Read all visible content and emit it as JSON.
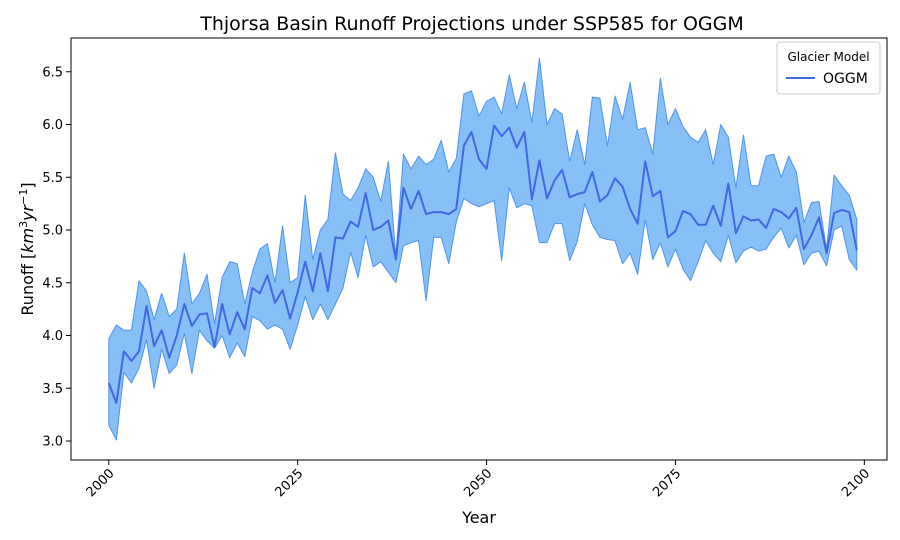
{
  "chart_data": {
    "type": "area",
    "title": "Thjorsa Basin Runoff Projections under SSP585 for OGGM",
    "xlabel": "Year",
    "ylabel_main": "Runoff [",
    "ylabel_km": "km",
    "ylabel_km_exp": "3",
    "ylabel_yr": "yr",
    "ylabel_yr_exp": "−1",
    "ylabel_close": "]",
    "xlim": [
      1995,
      2103
    ],
    "ylim": [
      2.82,
      6.82
    ],
    "x_ticks": [
      2000,
      2025,
      2050,
      2075,
      2100
    ],
    "x_tick_labels": [
      "2000",
      "2025",
      "2050",
      "2075",
      "2100"
    ],
    "y_ticks": [
      3.0,
      3.5,
      4.0,
      4.5,
      5.0,
      5.5,
      6.0,
      6.5
    ],
    "y_tick_labels": [
      "3.0",
      "3.5",
      "4.0",
      "4.5",
      "5.0",
      "5.5",
      "6.0",
      "6.5"
    ],
    "grid": false,
    "legend": {
      "title": "Glacier Model",
      "placement": "top-right",
      "entries": [
        "OGGM"
      ]
    },
    "colors": {
      "line": "#4169e1",
      "band_fill": "#87bff7",
      "band_edge": "#4f94ef"
    },
    "x": [
      2000,
      2001,
      2002,
      2003,
      2004,
      2005,
      2006,
      2007,
      2008,
      2009,
      2010,
      2011,
      2012,
      2013,
      2014,
      2015,
      2016,
      2017,
      2018,
      2019,
      2020,
      2021,
      2022,
      2023,
      2024,
      2025,
      2026,
      2027,
      2028,
      2029,
      2030,
      2031,
      2032,
      2033,
      2034,
      2035,
      2036,
      2037,
      2038,
      2039,
      2040,
      2041,
      2042,
      2043,
      2044,
      2045,
      2046,
      2047,
      2048,
      2049,
      2050,
      2051,
      2052,
      2053,
      2054,
      2055,
      2056,
      2057,
      2058,
      2059,
      2060,
      2061,
      2062,
      2063,
      2064,
      2065,
      2066,
      2067,
      2068,
      2069,
      2070,
      2071,
      2072,
      2073,
      2074,
      2075,
      2076,
      2077,
      2078,
      2079,
      2080,
      2081,
      2082,
      2083,
      2084,
      2085,
      2086,
      2087,
      2088,
      2089,
      2090,
      2091,
      2092,
      2093,
      2094,
      2095,
      2096,
      2097,
      2098,
      2099
    ],
    "series": [
      {
        "name": "OGGM",
        "values": [
          3.55,
          3.36,
          3.85,
          3.76,
          3.85,
          4.28,
          3.9,
          4.05,
          3.79,
          4.0,
          4.3,
          4.09,
          4.2,
          4.21,
          3.89,
          4.3,
          4.01,
          4.22,
          4.06,
          4.45,
          4.4,
          4.57,
          4.31,
          4.43,
          4.16,
          4.41,
          4.7,
          4.42,
          4.78,
          4.42,
          4.93,
          4.92,
          5.08,
          5.03,
          5.35,
          5.0,
          5.03,
          5.09,
          4.72,
          5.4,
          5.2,
          5.37,
          5.15,
          5.17,
          5.17,
          5.15,
          5.2,
          5.8,
          5.93,
          5.67,
          5.58,
          5.99,
          5.89,
          5.97,
          5.78,
          5.93,
          5.29,
          5.66,
          5.3,
          5.47,
          5.57,
          5.31,
          5.34,
          5.36,
          5.55,
          5.27,
          5.33,
          5.49,
          5.41,
          5.2,
          5.06,
          5.65,
          5.32,
          5.37,
          4.93,
          4.99,
          5.18,
          5.15,
          5.05,
          5.05,
          5.23,
          5.04,
          5.44,
          4.97,
          5.13,
          5.09,
          5.1,
          5.02,
          5.2,
          5.17,
          5.11,
          5.21,
          4.82,
          4.95,
          5.12,
          4.78,
          5.16,
          5.19,
          5.17,
          4.81
        ],
        "lower": [
          3.15,
          3.01,
          3.65,
          3.55,
          3.69,
          3.96,
          3.5,
          3.87,
          3.64,
          3.72,
          4.02,
          3.64,
          4.05,
          3.95,
          3.88,
          4.0,
          3.79,
          3.93,
          3.8,
          4.18,
          4.14,
          4.06,
          4.1,
          4.06,
          3.87,
          4.1,
          4.37,
          4.15,
          4.3,
          4.15,
          4.3,
          4.45,
          4.79,
          4.55,
          4.95,
          4.65,
          4.7,
          4.6,
          4.5,
          4.85,
          4.88,
          4.9,
          4.33,
          4.93,
          4.93,
          4.68,
          5.08,
          5.3,
          5.25,
          5.22,
          5.25,
          5.28,
          4.71,
          5.4,
          5.21,
          5.25,
          5.23,
          4.88,
          4.88,
          5.06,
          5.06,
          4.71,
          4.89,
          5.25,
          5.05,
          4.93,
          4.91,
          4.9,
          4.68,
          4.78,
          4.58,
          5.1,
          4.72,
          4.88,
          4.65,
          4.82,
          4.63,
          4.52,
          4.7,
          4.9,
          4.78,
          4.7,
          4.95,
          4.69,
          4.8,
          4.84,
          4.8,
          4.82,
          4.93,
          5.02,
          4.83,
          4.95,
          4.67,
          4.78,
          4.8,
          4.66,
          5.0,
          5.04,
          4.72,
          4.62
        ],
        "upper": [
          3.97,
          4.1,
          4.05,
          4.05,
          4.52,
          4.42,
          4.15,
          4.4,
          4.18,
          4.25,
          4.78,
          4.3,
          4.4,
          4.58,
          4.11,
          4.55,
          4.7,
          4.68,
          4.3,
          4.6,
          4.82,
          4.87,
          4.5,
          5.04,
          4.5,
          4.55,
          5.33,
          4.72,
          5.0,
          5.1,
          5.73,
          5.34,
          5.28,
          5.4,
          5.58,
          5.5,
          5.27,
          5.65,
          4.75,
          5.72,
          5.58,
          5.7,
          5.62,
          5.67,
          5.85,
          5.55,
          5.68,
          6.29,
          6.32,
          6.08,
          6.22,
          6.26,
          6.1,
          6.47,
          6.15,
          6.4,
          6.02,
          6.63,
          6.0,
          6.15,
          6.1,
          5.65,
          5.95,
          5.62,
          6.26,
          6.25,
          5.8,
          6.27,
          6.05,
          6.4,
          5.95,
          5.97,
          5.72,
          6.44,
          6.0,
          6.15,
          5.98,
          5.88,
          5.83,
          5.95,
          5.62,
          6.0,
          5.88,
          5.4,
          5.9,
          5.42,
          5.42,
          5.7,
          5.72,
          5.5,
          5.7,
          5.55,
          5.07,
          5.26,
          5.27,
          4.82,
          5.52,
          5.42,
          5.33,
          5.1
        ]
      }
    ]
  }
}
